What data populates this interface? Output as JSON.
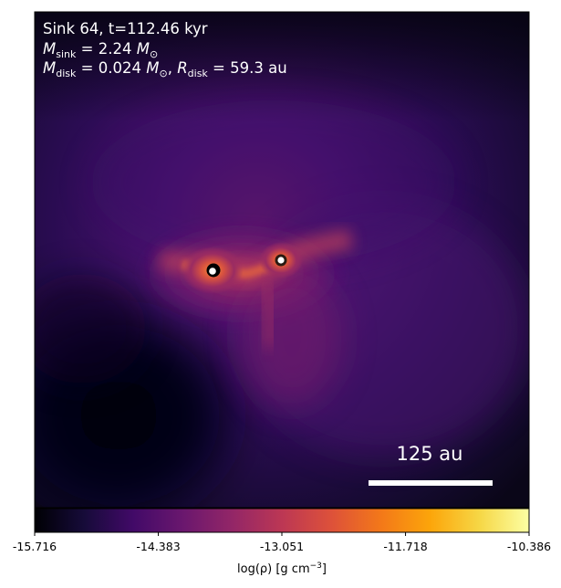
{
  "panel": {
    "title_line": "Sink 64, t=112.46 kyr",
    "sink_mass_line": "M_sink = 2.24 M_⊙",
    "disk_line": "M_disk = 0.024 M_⊙, R_disk = 59.3 au",
    "m_symbol": "M",
    "r_symbol": "R",
    "sub_sink": "sink",
    "sub_disk": "disk",
    "sink_mass": "2.24",
    "disk_mass": "0.024",
    "disk_radius": "59.3",
    "unit_au": "au",
    "sun_symbol": "⊙",
    "scale_bar_label": "125 au"
  },
  "colorbar": {
    "colormap": "inferno",
    "min": -15.716,
    "max": -10.386,
    "tick_labels": [
      "-15.716",
      "-14.383",
      "-13.051",
      "-11.718",
      "-10.386"
    ],
    "label": "log(ρ) [g cm⁻³]",
    "label_text": "log(ρ) [g cm",
    "label_exp": "−3",
    "label_end": "]"
  },
  "sinks": [
    {
      "ring_color": "#000000",
      "core_color": "#ffffff"
    },
    {
      "ring_color": "#2a1a12",
      "core_color": "#ffffff"
    }
  ],
  "colors": {
    "frame": "#000000",
    "text": "#ffffff",
    "background_deep": "#05030f",
    "background_mid": "#3a0f6a",
    "filament_hot": "#f07a3a"
  }
}
